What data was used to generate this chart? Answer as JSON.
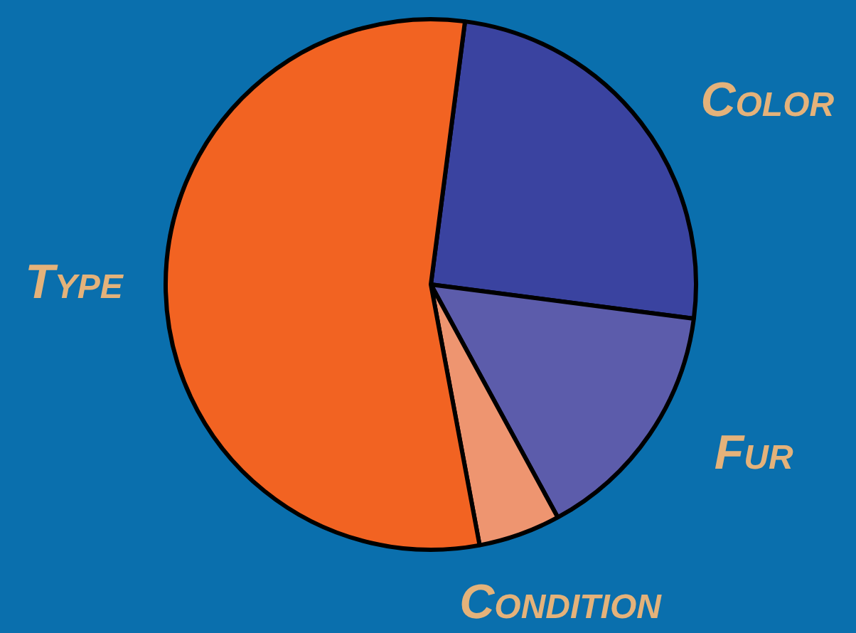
{
  "chart_data": {
    "type": "pie",
    "categories": [
      "Color",
      "Fur",
      "Condition",
      "Type"
    ],
    "values": [
      25,
      15,
      5,
      55
    ],
    "colors": [
      "#3a43a0",
      "#5c5cab",
      "#ee9570",
      "#f26322"
    ]
  }
}
